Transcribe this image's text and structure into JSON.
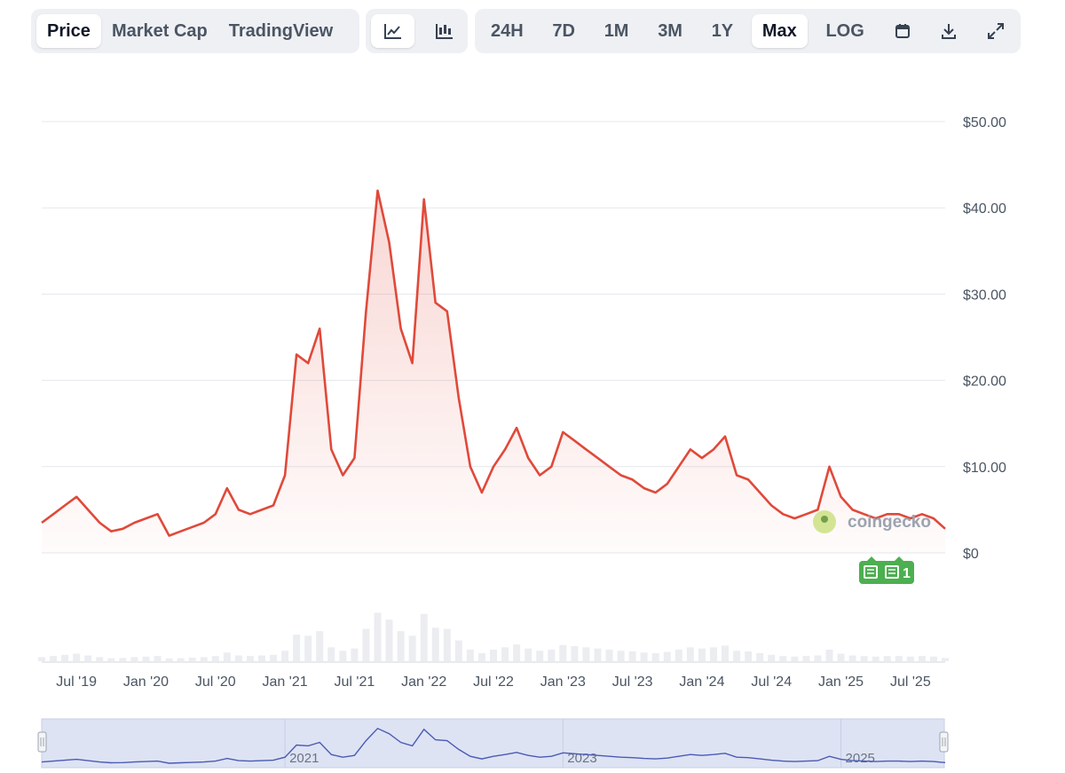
{
  "tabs": [
    {
      "label": "Price",
      "active": true
    },
    {
      "label": "Market Cap",
      "active": false
    },
    {
      "label": "TradingView",
      "active": false
    }
  ],
  "chart_types": [
    {
      "icon": "line-chart-icon",
      "active": true
    },
    {
      "icon": "candlestick-chart-icon",
      "active": false
    }
  ],
  "ranges": [
    {
      "label": "24H",
      "active": false
    },
    {
      "label": "7D",
      "active": false
    },
    {
      "label": "1M",
      "active": false
    },
    {
      "label": "3M",
      "active": false
    },
    {
      "label": "1Y",
      "active": false
    },
    {
      "label": "Max",
      "active": true
    },
    {
      "label": "LOG",
      "active": false
    }
  ],
  "tools": [
    "calendar-icon",
    "download-icon",
    "expand-icon"
  ],
  "watermark": "coingecko",
  "news_marker": {
    "count": "1"
  },
  "colors": {
    "price_line": "#e0493a",
    "navigator_line": "#4a5bb5",
    "navigator_bg": "#dde3f3",
    "news_marker": "#4caf50"
  },
  "chart_data": {
    "type": "area",
    "title": "",
    "xlabel": "",
    "ylabel": "",
    "ylim": [
      0,
      50
    ],
    "x_range": [
      "2019-04",
      "2025-10"
    ],
    "y_ticks": [
      "$0",
      "$10.00",
      "$20.00",
      "$30.00",
      "$40.00",
      "$50.00"
    ],
    "y_tick_values": [
      0,
      10,
      20,
      30,
      40,
      50
    ],
    "x_ticks": [
      "Jul '19",
      "Jan '20",
      "Jul '20",
      "Jan '21",
      "Jul '21",
      "Jan '22",
      "Jul '22",
      "Jan '23",
      "Jul '23",
      "Jan '24",
      "Jul '24",
      "Jan '25",
      "Jul '25"
    ],
    "x_tick_dates": [
      "2019-07",
      "2020-01",
      "2020-07",
      "2021-01",
      "2021-07",
      "2022-01",
      "2022-07",
      "2023-01",
      "2023-07",
      "2024-01",
      "2024-07",
      "2025-01",
      "2025-07"
    ],
    "navigator_labels": [
      "2021",
      "2023",
      "2025"
    ],
    "navigator_dates": [
      "2021-01",
      "2023-01",
      "2025-01"
    ],
    "series": [
      {
        "x": [
          "2019-04",
          "2019-05",
          "2019-06",
          "2019-07",
          "2019-08",
          "2019-09",
          "2019-10",
          "2019-11",
          "2019-12",
          "2020-01",
          "2020-02",
          "2020-03",
          "2020-04",
          "2020-05",
          "2020-06",
          "2020-07",
          "2020-08",
          "2020-09",
          "2020-10",
          "2020-11",
          "2020-12",
          "2021-01",
          "2021-02",
          "2021-03",
          "2021-04",
          "2021-05",
          "2021-06",
          "2021-07",
          "2021-08",
          "2021-09",
          "2021-10",
          "2021-11",
          "2021-12",
          "2022-01",
          "2022-02",
          "2022-03",
          "2022-04",
          "2022-05",
          "2022-06",
          "2022-07",
          "2022-08",
          "2022-09",
          "2022-10",
          "2022-11",
          "2022-12",
          "2023-01",
          "2023-02",
          "2023-03",
          "2023-04",
          "2023-05",
          "2023-06",
          "2023-07",
          "2023-08",
          "2023-09",
          "2023-10",
          "2023-11",
          "2023-12",
          "2024-01",
          "2024-02",
          "2024-03",
          "2024-04",
          "2024-05",
          "2024-06",
          "2024-07",
          "2024-08",
          "2024-09",
          "2024-10",
          "2024-11",
          "2024-12",
          "2025-01",
          "2025-02",
          "2025-03",
          "2025-04",
          "2025-05",
          "2025-06",
          "2025-07",
          "2025-08",
          "2025-09",
          "2025-10"
        ],
        "values": [
          3.5,
          4.5,
          5.5,
          6.5,
          5.0,
          3.5,
          2.5,
          2.8,
          3.5,
          4.0,
          4.5,
          2.0,
          2.5,
          3.0,
          3.5,
          4.5,
          7.5,
          5.0,
          4.5,
          5.0,
          5.5,
          9.0,
          23.0,
          22.0,
          26.0,
          12.0,
          9.0,
          11.0,
          28.0,
          42.0,
          36.0,
          26.0,
          22.0,
          41.0,
          29.0,
          28.0,
          18.0,
          10.0,
          7.0,
          10.0,
          12.0,
          14.5,
          11.0,
          9.0,
          10.0,
          14.0,
          13.0,
          12.0,
          11.0,
          10.0,
          9.0,
          8.5,
          7.5,
          7.0,
          8.0,
          10.0,
          12.0,
          11.0,
          12.0,
          13.5,
          9.0,
          8.5,
          7.0,
          5.5,
          4.5,
          4.0,
          4.5,
          5.0,
          10.0,
          6.5,
          5.0,
          4.5,
          4.0,
          4.5,
          4.5,
          4.0,
          4.5,
          4.0,
          2.8
        ]
      }
    ]
  }
}
